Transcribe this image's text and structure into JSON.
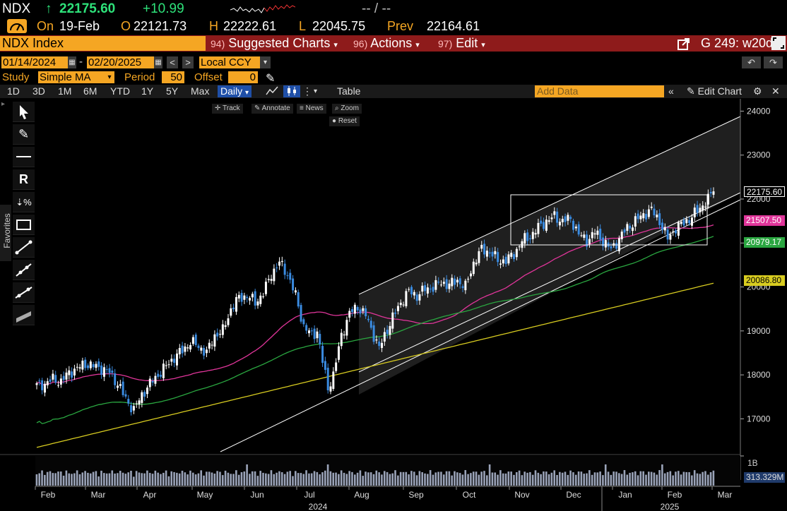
{
  "ticker": {
    "symbol": "NDX",
    "arrow": "↑",
    "last": "22175.60",
    "change": "+10.99",
    "blank": "-- / --"
  },
  "quote": {
    "on_label": "On",
    "date": "19-Feb",
    "open_label": "O",
    "open": "22121.73",
    "high_label": "H",
    "high": "22222.61",
    "low_label": "L",
    "low": "22045.75",
    "prev_label": "Prev",
    "prev": "22164.61"
  },
  "security_bar": {
    "security": "NDX Index",
    "menus": [
      {
        "num": "94)",
        "label": "Suggested Charts"
      },
      {
        "num": "96)",
        "label": "Actions"
      },
      {
        "num": "97)",
        "label": "Edit"
      }
    ],
    "right_label": "G 249: w20d"
  },
  "date_range": {
    "start": "01/14/2024",
    "sep": "-",
    "end": "02/20/2025",
    "currency": "Local CCY"
  },
  "study": {
    "label": "Study",
    "value": "Simple MA",
    "period_label": "Period",
    "period": "50",
    "offset_label": "Offset",
    "offset": "0"
  },
  "toolbar": {
    "ranges": [
      "1D",
      "3D",
      "1M",
      "6M",
      "YTD",
      "1Y",
      "5Y",
      "Max"
    ],
    "interval": "Daily",
    "table_label": "Table",
    "add_data_placeholder": "Add Data",
    "edit_chart_label": "Edit Chart"
  },
  "chart_controls": {
    "track": "Track",
    "annotate": "Annotate",
    "news": "News",
    "zoom": "Zoom",
    "reset": "Reset"
  },
  "left_panel": {
    "favorites": "Favorites"
  },
  "colors": {
    "orange": "#f5a623",
    "bar_red": "#8e1b1b",
    "up": "#ffffff",
    "down": "#3a8be0",
    "ma50": "#e0359a",
    "ma100": "#2aa640",
    "ma200": "#d8cc20",
    "channel": "#ffffff"
  },
  "chart_data": {
    "type": "candlestick",
    "y_ticks": [
      17000,
      18000,
      19000,
      20000,
      21000,
      22000,
      23000,
      24000
    ],
    "x_labels": [
      "Feb",
      "Mar",
      "Apr",
      "May",
      "Jun",
      "Jul",
      "Aug",
      "Sep",
      "Oct",
      "Nov",
      "Dec",
      "Jan",
      "Feb",
      "Mar"
    ],
    "year_labels": [
      "2024",
      "2025"
    ],
    "price_tags": [
      {
        "value": "22175.60",
        "name": "last",
        "color": "#ffffff"
      },
      {
        "value": "21507.50",
        "name": "ma50",
        "color": "#e0359a"
      },
      {
        "value": "20979.17",
        "name": "ma100",
        "color": "#2aa640"
      },
      {
        "value": "20086.80",
        "name": "ma200",
        "color": "#d8cc20"
      }
    ],
    "price_path": [
      [
        0,
        17750
      ],
      [
        3,
        17800
      ],
      [
        6,
        17900
      ],
      [
        9,
        17850
      ],
      [
        12,
        18050
      ],
      [
        15,
        18150
      ],
      [
        18,
        18250
      ],
      [
        21,
        18200
      ],
      [
        24,
        18150
      ],
      [
        27,
        18050
      ],
      [
        30,
        17800
      ],
      [
        33,
        17450
      ],
      [
        36,
        17200
      ],
      [
        39,
        17550
      ],
      [
        42,
        17800
      ],
      [
        45,
        18000
      ],
      [
        48,
        18200
      ],
      [
        51,
        18400
      ],
      [
        54,
        18550
      ],
      [
        57,
        18750
      ],
      [
        60,
        18650
      ],
      [
        63,
        18500
      ],
      [
        66,
        18900
      ],
      [
        69,
        19000
      ],
      [
        72,
        19500
      ],
      [
        75,
        19750
      ],
      [
        78,
        19800
      ],
      [
        81,
        19650
      ],
      [
        84,
        19850
      ],
      [
        87,
        20300
      ],
      [
        90,
        20550
      ],
      [
        93,
        20300
      ],
      [
        96,
        19800
      ],
      [
        99,
        19100
      ],
      [
        102,
        18900
      ],
      [
        104,
        19000
      ],
      [
        106,
        18300
      ],
      [
        108,
        17700
      ],
      [
        110,
        18000
      ],
      [
        113,
        18900
      ],
      [
        116,
        19400
      ],
      [
        119,
        19550
      ],
      [
        122,
        19350
      ],
      [
        125,
        18900
      ],
      [
        127,
        18600
      ],
      [
        129,
        18900
      ],
      [
        132,
        19300
      ],
      [
        135,
        19650
      ],
      [
        138,
        19900
      ],
      [
        141,
        19800
      ],
      [
        144,
        19950
      ],
      [
        147,
        20000
      ],
      [
        150,
        20100
      ],
      [
        153,
        20050
      ],
      [
        156,
        20150
      ],
      [
        159,
        20000
      ],
      [
        162,
        20550
      ],
      [
        165,
        20850
      ],
      [
        168,
        20800
      ],
      [
        171,
        20600
      ],
      [
        174,
        20600
      ],
      [
        177,
        20750
      ],
      [
        180,
        21050
      ],
      [
        183,
        21150
      ],
      [
        186,
        21350
      ],
      [
        189,
        21500
      ],
      [
        192,
        21600
      ],
      [
        195,
        21500
      ],
      [
        198,
        21550
      ],
      [
        201,
        21200
      ],
      [
        204,
        21050
      ],
      [
        207,
        21250
      ],
      [
        210,
        21050
      ],
      [
        213,
        20850
      ],
      [
        216,
        21100
      ],
      [
        219,
        21350
      ],
      [
        222,
        21500
      ],
      [
        225,
        21650
      ],
      [
        228,
        21750
      ],
      [
        231,
        21500
      ],
      [
        234,
        21100
      ],
      [
        237,
        21350
      ],
      [
        240,
        21450
      ],
      [
        243,
        21600
      ],
      [
        246,
        21800
      ],
      [
        249,
        22000
      ],
      [
        251,
        22175
      ]
    ],
    "total_bars": 252,
    "x_range": [
      "2024-01-14",
      "2025-02-20"
    ],
    "volume_axis_label": "1B",
    "volume_tag": "313.329M",
    "ylim": [
      16300,
      24200
    ]
  }
}
